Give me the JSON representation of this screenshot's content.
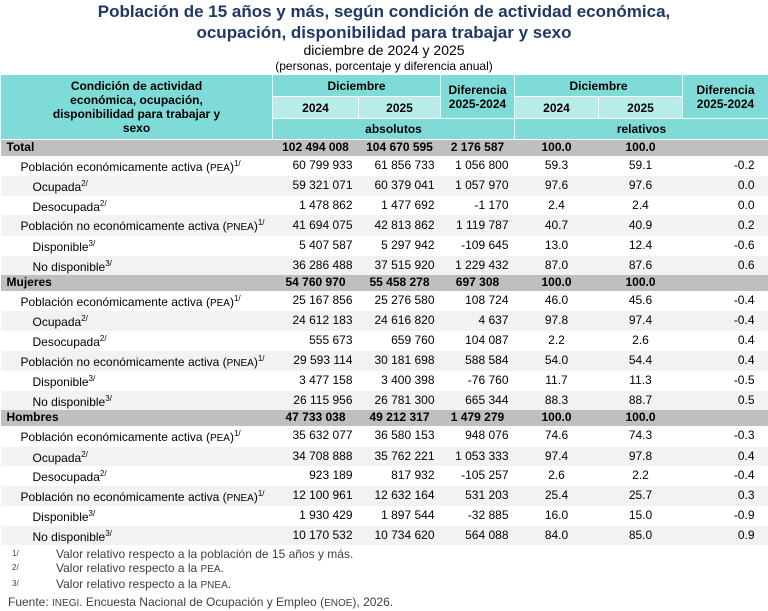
{
  "title_line1": "Población de 15 años y más, según condición de actividad económica,",
  "title_line2": "ocupación, disponibilidad para trabajar y sexo",
  "subtitle": "diciembre de 2024 y 2025",
  "subtitle2": "(personas, porcentaje y diferencia anual)",
  "header": {
    "condition": "Condición de actividad económica, ocupación, disponibilidad para trabajar y sexo",
    "diciembre": "Diciembre",
    "diferencia": "Diferencia 2025-2024",
    "y2024": "2024",
    "y2025": "2025",
    "absolutos": "absolutos",
    "relativos": "relativos"
  },
  "rows": [
    {
      "type": "sec",
      "label": "Total",
      "v": [
        "102 494 008",
        "104 670 595",
        "2 176 587",
        "100.0",
        "100.0",
        ""
      ]
    },
    {
      "lvl": 1,
      "label": "Población económicamente activa (",
      "abbr": "PEA",
      "sup": "1/",
      "v": [
        "60 799 933",
        "61 856 733",
        "1 056 800",
        "59.3",
        "59.1",
        "-0.2"
      ]
    },
    {
      "lvl": 2,
      "label": "Ocupada",
      "sup": "2/",
      "v": [
        "59 321 071",
        "60 379 041",
        "1 057 970",
        "97.6",
        "97.6",
        "0.0"
      ]
    },
    {
      "lvl": 2,
      "label": "Desocupada",
      "sup": "2/",
      "v": [
        "1 478 862",
        "1 477 692",
        "-1 170",
        "2.4",
        "2.4",
        "0.0"
      ]
    },
    {
      "lvl": 1,
      "label": "Población no económicamente activa (",
      "abbr": "PNEA",
      "sup": "1/",
      "v": [
        "41 694 075",
        "42 813 862",
        "1 119 787",
        "40.7",
        "40.9",
        "0.2"
      ]
    },
    {
      "lvl": 2,
      "label": "Disponible",
      "sup": "3/",
      "v": [
        "5 407 587",
        "5 297 942",
        "-109 645",
        "13.0",
        "12.4",
        "-0.6"
      ]
    },
    {
      "lvl": 2,
      "label": "No disponible",
      "sup": "3/",
      "v": [
        "36 286 488",
        "37 515 920",
        "1 229 432",
        "87.0",
        "87.6",
        "0.6"
      ]
    },
    {
      "type": "sec",
      "label": "Mujeres",
      "v": [
        "54 760 970",
        "55 458 278",
        "697 308",
        "100.0",
        "100.0",
        ""
      ]
    },
    {
      "lvl": 1,
      "label": "Población económicamente activa (",
      "abbr": "PEA",
      "sup": "1/",
      "v": [
        "25 167 856",
        "25 276 580",
        "108 724",
        "46.0",
        "45.6",
        "-0.4"
      ]
    },
    {
      "lvl": 2,
      "label": "Ocupada",
      "sup": "2/",
      "v": [
        "24 612 183",
        "24 616 820",
        "4 637",
        "97.8",
        "97.4",
        "-0.4"
      ]
    },
    {
      "lvl": 2,
      "label": "Desocupada",
      "sup": "2/",
      "v": [
        "555 673",
        "659 760",
        "104 087",
        "2.2",
        "2.6",
        "0.4"
      ]
    },
    {
      "lvl": 1,
      "label": "Población no económicamente activa (",
      "abbr": "PNEA",
      "sup": "1/",
      "v": [
        "29 593 114",
        "30 181 698",
        "588 584",
        "54.0",
        "54.4",
        "0.4"
      ]
    },
    {
      "lvl": 2,
      "label": "Disponible",
      "sup": "3/",
      "v": [
        "3 477 158",
        "3 400 398",
        "-76 760",
        "11.7",
        "11.3",
        "-0.5"
      ]
    },
    {
      "lvl": 2,
      "label": "No disponible",
      "sup": "3/",
      "v": [
        "26 115 956",
        "26 781 300",
        "665 344",
        "88.3",
        "88.7",
        "0.5"
      ]
    },
    {
      "type": "sec",
      "label": "Hombres",
      "v": [
        "47 733 038",
        "49 212 317",
        "1 479 279",
        "100.0",
        "100.0",
        ""
      ]
    },
    {
      "lvl": 1,
      "label": "Población económicamente activa (",
      "abbr": "PEA",
      "sup": "1/",
      "v": [
        "35 632 077",
        "36 580 153",
        "948 076",
        "74.6",
        "74.3",
        "-0.3"
      ]
    },
    {
      "lvl": 2,
      "label": "Ocupada",
      "sup": "2/",
      "v": [
        "34 708 888",
        "35 762 221",
        "1 053 333",
        "97.4",
        "97.8",
        "0.4"
      ]
    },
    {
      "lvl": 2,
      "label": "Desocupada",
      "sup": "2/",
      "v": [
        "923 189",
        "817 932",
        "-105 257",
        "2.6",
        "2.2",
        "-0.4"
      ]
    },
    {
      "lvl": 1,
      "label": "Población no económicamente activa (",
      "abbr": "PNEA",
      "sup": "1/",
      "v": [
        "12 100 961",
        "12 632 164",
        "531 203",
        "25.4",
        "25.7",
        "0.3"
      ]
    },
    {
      "lvl": 2,
      "label": "Disponible",
      "sup": "3/",
      "v": [
        "1 930 429",
        "1 897 544",
        "-32 885",
        "16.0",
        "15.0",
        "-0.9"
      ]
    },
    {
      "lvl": 2,
      "label": "No disponible",
      "sup": "3/",
      "v": [
        "10 170 532",
        "10 734 620",
        "564 088",
        "84.0",
        "85.0",
        "0.9"
      ]
    }
  ],
  "notes": [
    {
      "mark": "1/",
      "text": "Valor relativo respecto a la población de 15 años y más."
    },
    {
      "mark": "2/",
      "text": "Valor relativo respecto a la ",
      "abbr": "PEA",
      "end": "."
    },
    {
      "mark": "3/",
      "text": "Valor relativo respecto a la ",
      "abbr": "PNEA",
      "end": "."
    }
  ],
  "source": {
    "prefix": "Fuente: ",
    "org": "INEGI",
    "mid": ". Encuesta Nacional de Ocupación y Empleo (",
    "abbr": "ENOE",
    "end": "), 2026."
  }
}
